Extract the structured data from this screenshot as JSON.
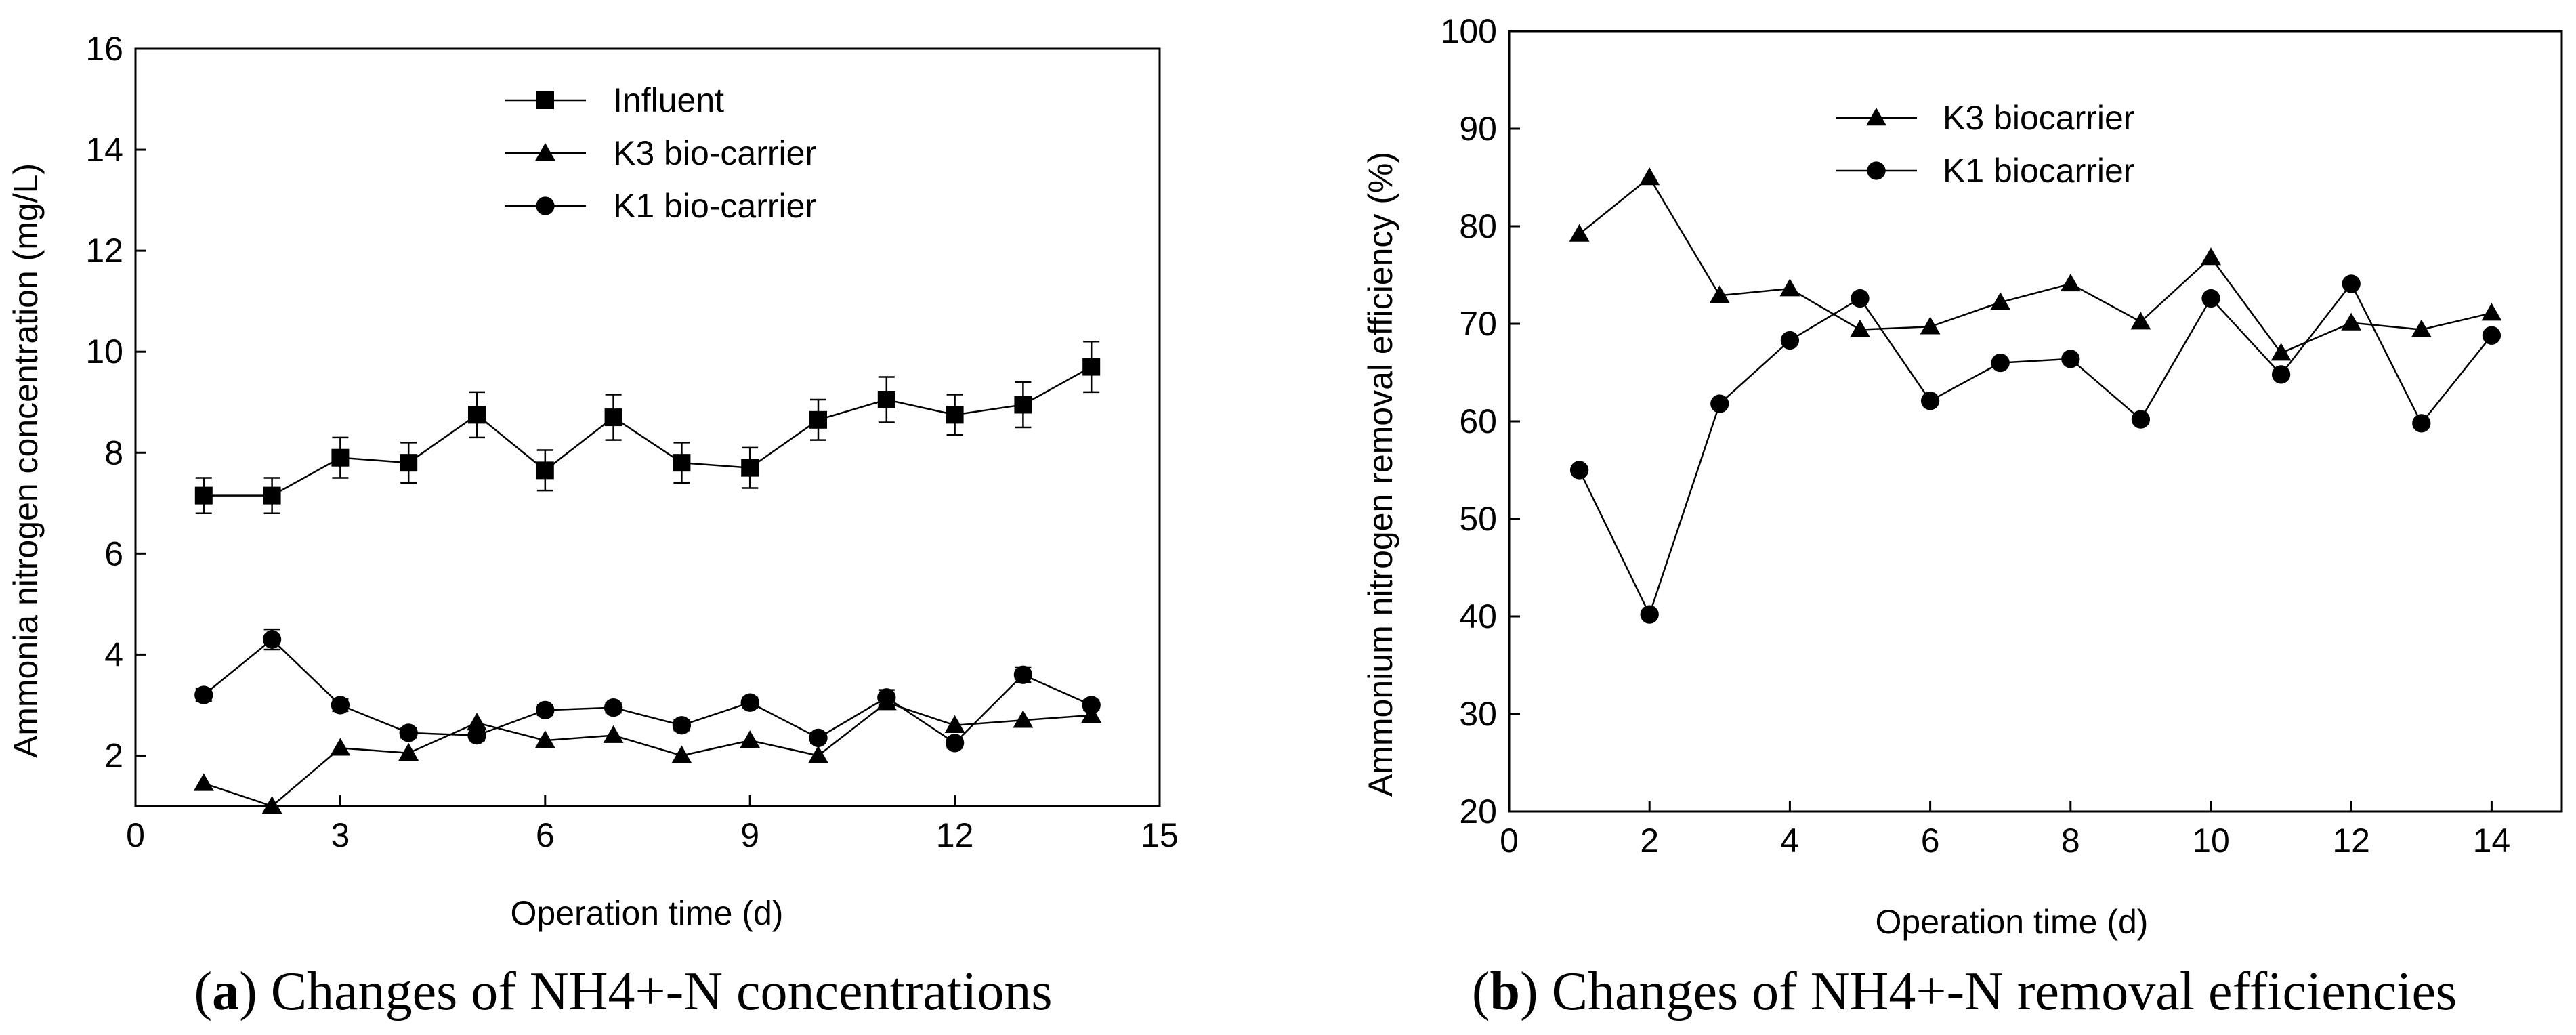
{
  "chart_data": [
    {
      "id": "a",
      "type": "line",
      "xlabel": "Operation time (d)",
      "ylabel": "Ammonia nitrogen concentration (mg/L)",
      "xlim": [
        0,
        15
      ],
      "ylim": [
        1,
        16
      ],
      "xticks": [
        0,
        3,
        6,
        9,
        12,
        15
      ],
      "yticks": [
        2,
        4,
        6,
        8,
        10,
        12,
        14,
        16
      ],
      "legend_position": "top-center",
      "grid": false,
      "caption": {
        "label": "a",
        "text": "Changes of NH4+-N concentrations"
      },
      "x": [
        1,
        2,
        3,
        4,
        5,
        6,
        7,
        8,
        9,
        10,
        11,
        12,
        13,
        14
      ],
      "series": [
        {
          "name": "Influent",
          "marker": "square",
          "values": [
            7.15,
            7.15,
            7.9,
            7.8,
            8.75,
            7.65,
            8.7,
            7.8,
            7.7,
            8.65,
            9.05,
            8.75,
            8.95,
            9.7
          ],
          "errors": [
            0.35,
            0.35,
            0.4,
            0.4,
            0.45,
            0.4,
            0.45,
            0.4,
            0.4,
            0.4,
            0.45,
            0.4,
            0.45,
            0.5
          ]
        },
        {
          "name": "K3 bio-carrier",
          "marker": "triangle",
          "values": [
            1.45,
            1.0,
            2.15,
            2.05,
            2.65,
            2.3,
            2.4,
            2.0,
            2.3,
            2.0,
            3.05,
            2.6,
            2.7,
            2.8
          ]
        },
        {
          "name": "K1 bio-carrier",
          "marker": "circle",
          "values": [
            3.2,
            4.3,
            3.0,
            2.45,
            2.4,
            2.9,
            2.95,
            2.6,
            3.05,
            2.35,
            3.15,
            2.25,
            3.6,
            3.0
          ],
          "errors": [
            0.12,
            0.2,
            0.12,
            0.1,
            0.1,
            0.1,
            0.1,
            0.1,
            0.1,
            0.1,
            0.15,
            0.1,
            0.15,
            0.1
          ]
        }
      ]
    },
    {
      "id": "b",
      "type": "line",
      "xlabel": "Operation time (d)",
      "ylabel": "Ammonium nitrogen removal efficiency (%)",
      "xlim": [
        0,
        15
      ],
      "ylim": [
        20,
        100
      ],
      "xticks": [
        0,
        2,
        4,
        6,
        8,
        10,
        12,
        14
      ],
      "yticks": [
        20,
        30,
        40,
        50,
        60,
        70,
        80,
        90,
        100
      ],
      "legend_position": "top-left",
      "grid": false,
      "caption": {
        "label": "b",
        "text": "Changes of NH4+-N removal efficiencies"
      },
      "x": [
        1,
        2,
        3,
        4,
        5,
        6,
        7,
        8,
        9,
        10,
        11,
        12,
        13,
        14
      ],
      "series": [
        {
          "name": "K3 biocarrier",
          "marker": "triangle",
          "values": [
            79.2,
            85.0,
            72.9,
            73.6,
            69.4,
            69.7,
            72.2,
            74.1,
            70.2,
            76.8,
            67.0,
            70.1,
            69.4,
            71.1
          ]
        },
        {
          "name": "K1 biocarrier",
          "marker": "circle",
          "values": [
            55.0,
            40.2,
            61.8,
            68.3,
            72.6,
            62.1,
            66.0,
            66.4,
            60.2,
            72.6,
            64.8,
            74.1,
            59.8,
            68.8
          ]
        }
      ]
    }
  ]
}
